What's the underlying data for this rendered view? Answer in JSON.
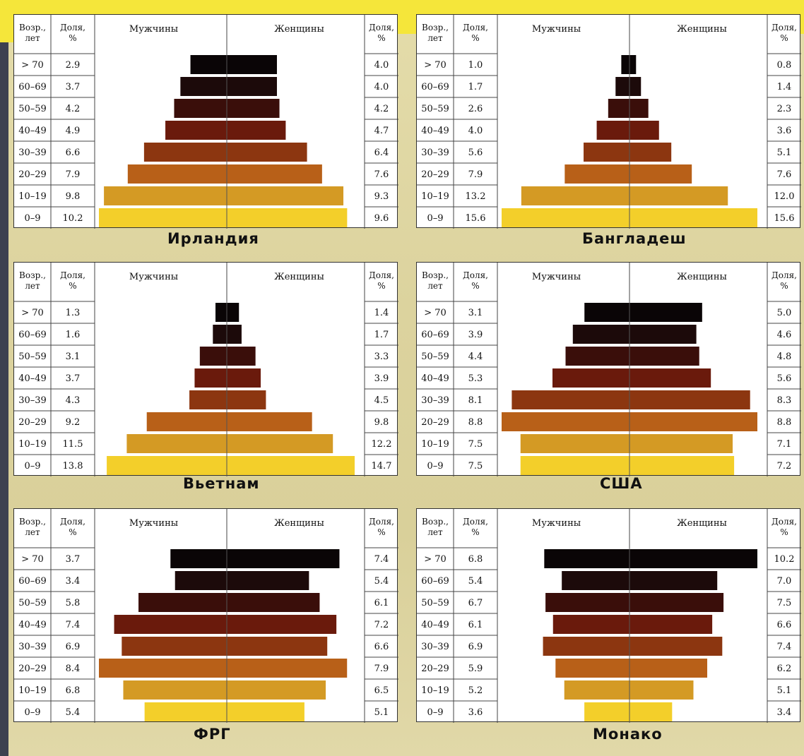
{
  "headers": {
    "age": "Возр., лет",
    "share": "Доля, %",
    "men": "Мужчины",
    "women": "Женщины"
  },
  "age_groups": [
    "> 70",
    "60–69",
    "50–59",
    "40–49",
    "30–39",
    "20–29",
    "10–19",
    "0–9"
  ],
  "colors": [
    "#0a0506",
    "#1c0a0a",
    "#3a0e0a",
    "#6a1a0c",
    "#8c3610",
    "#b86018",
    "#d49a24",
    "#f3cf2a"
  ],
  "chart_data": [
    {
      "type": "bar",
      "title": "Ирландия",
      "categories": [
        "> 70",
        "60–69",
        "50–59",
        "40–49",
        "30–39",
        "20–29",
        "10–19",
        "0–9"
      ],
      "series": [
        {
          "name": "Мужчины",
          "values": [
            2.9,
            3.7,
            4.2,
            4.9,
            6.6,
            7.9,
            9.8,
            10.2
          ]
        },
        {
          "name": "Женщины",
          "values": [
            4.0,
            4.0,
            4.2,
            4.7,
            6.4,
            7.6,
            9.3,
            9.6
          ]
        }
      ]
    },
    {
      "type": "bar",
      "title": "Бангладеш",
      "categories": [
        "> 70",
        "60–69",
        "50–59",
        "40–49",
        "30–39",
        "20–29",
        "10–19",
        "0–9"
      ],
      "series": [
        {
          "name": "Мужчины",
          "values": [
            1.0,
            1.7,
            2.6,
            4.0,
            5.6,
            7.9,
            13.2,
            15.6
          ]
        },
        {
          "name": "Женщины",
          "values": [
            0.8,
            1.4,
            2.3,
            3.6,
            5.1,
            7.6,
            12.0,
            15.6
          ]
        }
      ]
    },
    {
      "type": "bar",
      "title": "Вьетнам",
      "categories": [
        "> 70",
        "60–69",
        "50–59",
        "40–49",
        "30–39",
        "20–29",
        "10–19",
        "0–9"
      ],
      "series": [
        {
          "name": "Мужчины",
          "values": [
            1.3,
            1.6,
            3.1,
            3.7,
            4.3,
            9.2,
            11.5,
            13.8
          ]
        },
        {
          "name": "Женщины",
          "values": [
            1.4,
            1.7,
            3.3,
            3.9,
            4.5,
            9.8,
            12.2,
            14.7
          ]
        }
      ]
    },
    {
      "type": "bar",
      "title": "США",
      "categories": [
        "> 70",
        "60–69",
        "50–59",
        "40–49",
        "30–39",
        "20–29",
        "10–19",
        "0–9"
      ],
      "series": [
        {
          "name": "Мужчины",
          "values": [
            3.1,
            3.9,
            4.4,
            5.3,
            8.1,
            8.8,
            7.5,
            7.5
          ]
        },
        {
          "name": "Женщины",
          "values": [
            5.0,
            4.6,
            4.8,
            5.6,
            8.3,
            8.8,
            7.1,
            7.2
          ]
        }
      ]
    },
    {
      "type": "bar",
      "title": "ФРГ",
      "categories": [
        "> 70",
        "60–69",
        "50–59",
        "40–49",
        "30–39",
        "20–29",
        "10–19",
        "0–9"
      ],
      "series": [
        {
          "name": "Мужчины",
          "values": [
            3.7,
            3.4,
            5.8,
            7.4,
            6.9,
            8.4,
            6.8,
            5.4
          ]
        },
        {
          "name": "Женщины",
          "values": [
            7.4,
            5.4,
            6.1,
            7.2,
            6.6,
            7.9,
            6.5,
            5.1
          ]
        }
      ]
    },
    {
      "type": "bar",
      "title": "Монако",
      "categories": [
        "> 70",
        "60–69",
        "50–59",
        "40–49",
        "30–39",
        "20–29",
        "10–19",
        "0–9"
      ],
      "series": [
        {
          "name": "Мужчины",
          "values": [
            6.8,
            5.4,
            6.7,
            6.1,
            6.9,
            5.9,
            5.2,
            3.6
          ]
        },
        {
          "name": "Женщины",
          "values": [
            10.2,
            7.0,
            7.5,
            6.6,
            7.4,
            6.2,
            5.1,
            3.4
          ]
        }
      ]
    }
  ]
}
